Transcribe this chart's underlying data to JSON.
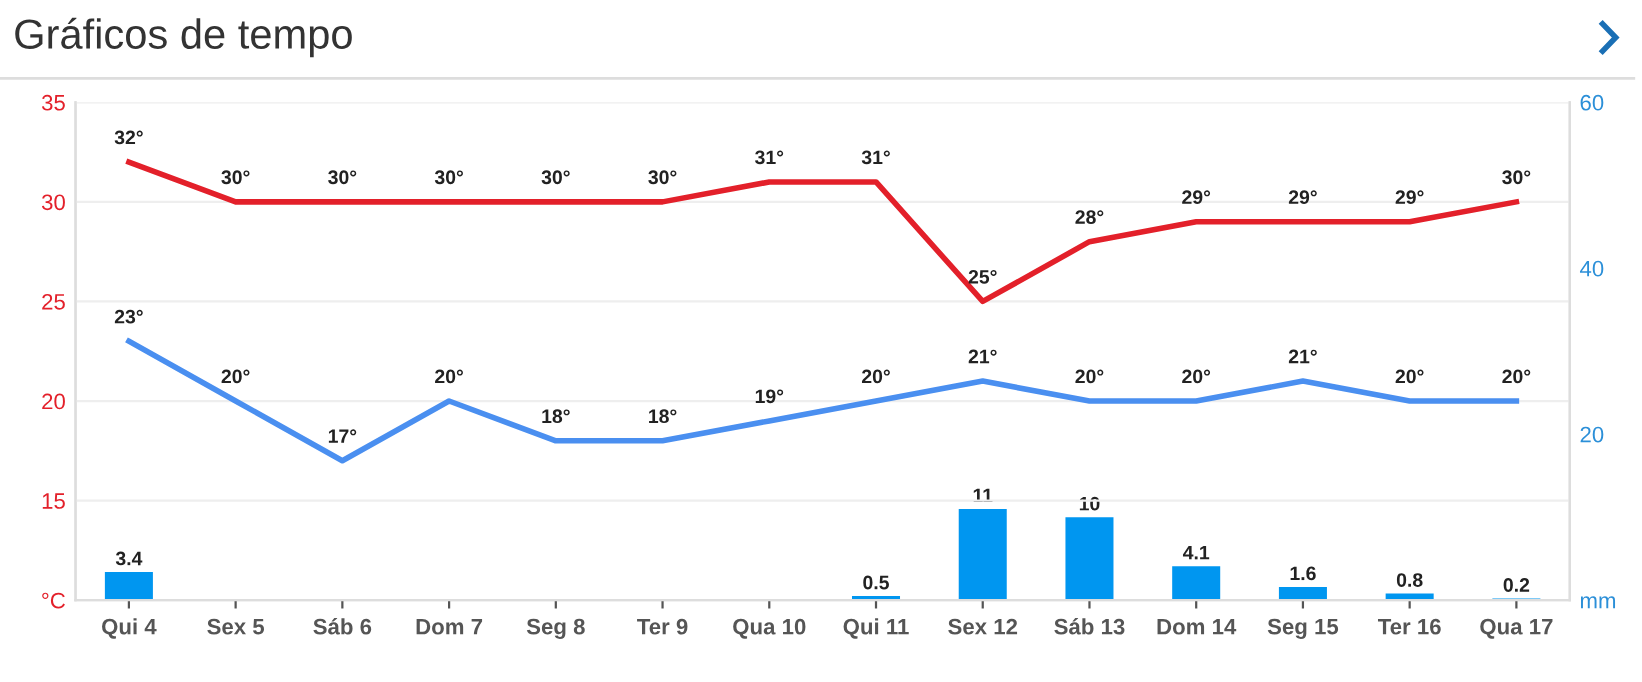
{
  "chart_data": {
    "type": "line",
    "title": "Gráficos de tempo",
    "categories": [
      "Qui 4",
      "Sex 5",
      "Sáb 6",
      "Dom 7",
      "Seg 8",
      "Ter 9",
      "Qua 10",
      "Qui 11",
      "Sex 12",
      "Sáb 13",
      "Dom 14",
      "Seg 15",
      "Ter 16",
      "Qua 17"
    ],
    "series": [
      {
        "color": "#e3202a",
        "values": [
          32,
          30,
          30,
          30,
          30,
          30,
          31,
          31,
          25,
          28,
          29,
          29,
          29,
          30
        ],
        "value_labels": [
          "32°",
          "30°",
          "30°",
          "30°",
          "30°",
          "30°",
          "31°",
          "31°",
          "25°",
          "28°",
          "29°",
          "29°",
          "29°",
          "30°"
        ]
      },
      {
        "color": "#4a8ff0",
        "values": [
          23,
          20,
          17,
          20,
          18,
          18,
          19,
          20,
          21,
          20,
          20,
          21,
          20,
          20
        ],
        "value_labels": [
          "23°",
          "20°",
          "17°",
          "20°",
          "18°",
          "18°",
          "19°",
          "20°",
          "21°",
          "20°",
          "20°",
          "21°",
          "20°",
          "20°"
        ]
      },
      {
        "type": "bar",
        "axis": "y2",
        "color": "#0096f0",
        "values": [
          3.4,
          null,
          null,
          null,
          null,
          null,
          null,
          0.5,
          11,
          10,
          4.1,
          1.6,
          0.8,
          0.2
        ],
        "value_labels": [
          "3.4",
          null,
          null,
          null,
          null,
          null,
          null,
          "0.5",
          "11",
          "10",
          "4.1",
          "1.6",
          "0.8",
          "0.2"
        ]
      }
    ],
    "ylim": [
      10,
      35
    ],
    "yticks": [
      {
        "value": 10,
        "label": "°C"
      },
      15,
      20,
      25,
      30,
      35
    ],
    "y2lim": [
      0,
      60
    ],
    "y2ticks": [
      {
        "value": 0,
        "label": "mm"
      },
      20,
      40,
      60
    ],
    "grid": "y",
    "marker": "none",
    "line_style": "solid",
    "legend": false
  }
}
